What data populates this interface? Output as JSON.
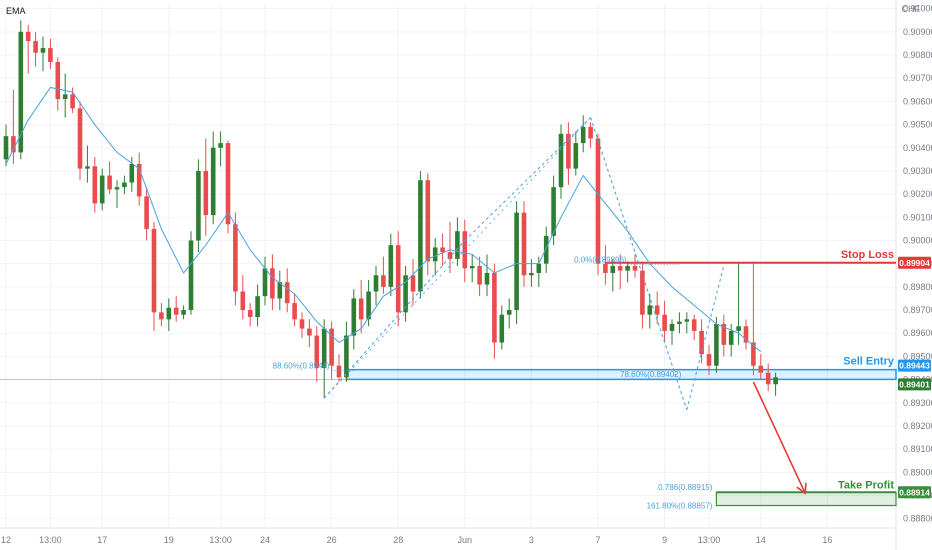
{
  "indicator_label": "EMA",
  "currency_label": "CHF",
  "colors": {
    "up": "#2e7d32",
    "down": "#e84c4c",
    "ema": "#4aa3df",
    "stop_loss": "#e53935",
    "sell_entry": "#2196f3",
    "take_profit": "#388e3c",
    "pattern": "#4aa3df",
    "grid": "#f0f3fa",
    "axis_text": "#787b86"
  },
  "chart_data": {
    "type": "candlestick",
    "instrument_currency": "CHF",
    "y_ticks": [
      "0.91000",
      "0.90900",
      "0.90800",
      "0.90700",
      "0.90600",
      "0.90500",
      "0.90400",
      "0.90300",
      "0.90200",
      "0.90100",
      "0.90000",
      "0.89900",
      "0.89800",
      "0.89700",
      "0.89600",
      "0.89500",
      "0.89400",
      "0.89300",
      "0.89200",
      "0.89100",
      "0.89000",
      "0.88900",
      "0.88800"
    ],
    "ylim": [
      0.8876,
      0.9102
    ],
    "x_ticks": [
      {
        "label": "12",
        "index": 0
      },
      {
        "label": "13:00",
        "index": 6
      },
      {
        "label": "17",
        "index": 13
      },
      {
        "label": "19",
        "index": 22
      },
      {
        "label": "13:00",
        "index": 29
      },
      {
        "label": "24",
        "index": 35
      },
      {
        "label": "26",
        "index": 44
      },
      {
        "label": "28",
        "index": 53
      },
      {
        "label": "Jun",
        "index": 62
      },
      {
        "label": "3",
        "index": 71
      },
      {
        "label": "7",
        "index": 80
      },
      {
        "label": "9",
        "index": 89
      },
      {
        "label": "13:00",
        "index": 95
      },
      {
        "label": "14",
        "index": 102
      },
      {
        "label": "16",
        "index": 111
      }
    ],
    "candles": [
      [
        0.9035,
        0.905,
        0.9032,
        0.9045
      ],
      [
        0.9045,
        0.9065,
        0.9033,
        0.9038
      ],
      [
        0.9038,
        0.9095,
        0.9035,
        0.909
      ],
      [
        0.909,
        0.9093,
        0.9072,
        0.9086
      ],
      [
        0.9086,
        0.909,
        0.9075,
        0.9081
      ],
      [
        0.9081,
        0.9088,
        0.9073,
        0.9083
      ],
      [
        0.9083,
        0.9087,
        0.9074,
        0.9077
      ],
      [
        0.9077,
        0.9079,
        0.9056,
        0.9061
      ],
      [
        0.9061,
        0.9072,
        0.9053,
        0.9063
      ],
      [
        0.9063,
        0.9066,
        0.9055,
        0.9057
      ],
      [
        0.9057,
        0.906,
        0.9026,
        0.9031
      ],
      [
        0.9031,
        0.9041,
        0.9025,
        0.9032
      ],
      [
        0.9032,
        0.9036,
        0.9012,
        0.9016
      ],
      [
        0.9016,
        0.9031,
        0.9013,
        0.9028
      ],
      [
        0.9028,
        0.9034,
        0.902,
        0.9022
      ],
      [
        0.9022,
        0.9026,
        0.9014,
        0.9023
      ],
      [
        0.9023,
        0.9028,
        0.902,
        0.9025
      ],
      [
        0.9025,
        0.9036,
        0.9021,
        0.9033
      ],
      [
        0.9033,
        0.9038,
        0.9015,
        0.9019
      ],
      [
        0.9019,
        0.9023,
        0.9,
        0.9005
      ],
      [
        0.9005,
        0.9008,
        0.8961,
        0.8969
      ],
      [
        0.8969,
        0.8973,
        0.8963,
        0.8966
      ],
      [
        0.8966,
        0.8975,
        0.8961,
        0.8971
      ],
      [
        0.8971,
        0.8976,
        0.8965,
        0.8968
      ],
      [
        0.8968,
        0.8972,
        0.8966,
        0.897
      ],
      [
        0.897,
        0.9004,
        0.8968,
        0.9
      ],
      [
        0.9,
        0.9035,
        0.8995,
        0.903
      ],
      [
        0.903,
        0.9044,
        0.9002,
        0.9011
      ],
      [
        0.9011,
        0.9047,
        0.9007,
        0.904
      ],
      [
        0.904,
        0.9047,
        0.9032,
        0.9042
      ],
      [
        0.9042,
        0.9043,
        0.9003,
        0.9007
      ],
      [
        0.9007,
        0.9012,
        0.8972,
        0.8978
      ],
      [
        0.8978,
        0.8985,
        0.8966,
        0.897
      ],
      [
        0.897,
        0.8973,
        0.8963,
        0.8967
      ],
      [
        0.8967,
        0.8981,
        0.8963,
        0.8976
      ],
      [
        0.8976,
        0.8993,
        0.8972,
        0.8988
      ],
      [
        0.8988,
        0.8994,
        0.897,
        0.8975
      ],
      [
        0.8975,
        0.8987,
        0.897,
        0.8982
      ],
      [
        0.8982,
        0.8988,
        0.8969,
        0.8973
      ],
      [
        0.8973,
        0.8977,
        0.8963,
        0.8966
      ],
      [
        0.8966,
        0.8969,
        0.8958,
        0.8962
      ],
      [
        0.8962,
        0.8966,
        0.8954,
        0.8959
      ],
      [
        0.8959,
        0.8963,
        0.8939,
        0.8945
      ],
      [
        0.8945,
        0.8966,
        0.8932,
        0.8962
      ],
      [
        0.8962,
        0.8965,
        0.894,
        0.8946
      ],
      [
        0.8946,
        0.8951,
        0.8939,
        0.8941
      ],
      [
        0.8941,
        0.8965,
        0.8939,
        0.8959
      ],
      [
        0.8959,
        0.8979,
        0.8953,
        0.8975
      ],
      [
        0.8975,
        0.8983,
        0.896,
        0.8966
      ],
      [
        0.8966,
        0.8983,
        0.8963,
        0.8978
      ],
      [
        0.8978,
        0.8989,
        0.8972,
        0.8985
      ],
      [
        0.8985,
        0.8993,
        0.8977,
        0.898
      ],
      [
        0.898,
        0.9003,
        0.8976,
        0.8998
      ],
      [
        0.8998,
        0.9004,
        0.8963,
        0.8969
      ],
      [
        0.8969,
        0.8989,
        0.8965,
        0.8985
      ],
      [
        0.8985,
        0.8992,
        0.8972,
        0.8978
      ],
      [
        0.8978,
        0.903,
        0.8975,
        0.9026
      ],
      [
        0.9026,
        0.9029,
        0.8985,
        0.8991
      ],
      [
        0.8991,
        0.9001,
        0.8985,
        0.8997
      ],
      [
        0.8997,
        0.9003,
        0.8989,
        0.8995
      ],
      [
        0.8995,
        0.9008,
        0.8986,
        0.8992
      ],
      [
        0.8992,
        0.901,
        0.8989,
        0.9004
      ],
      [
        0.9004,
        0.9009,
        0.8982,
        0.8988
      ],
      [
        0.8988,
        0.8994,
        0.8982,
        0.8989
      ],
      [
        0.8989,
        0.8993,
        0.8976,
        0.8981
      ],
      [
        0.8981,
        0.8994,
        0.8976,
        0.8986
      ],
      [
        0.8986,
        0.899,
        0.8949,
        0.8956
      ],
      [
        0.8956,
        0.8972,
        0.8953,
        0.8968
      ],
      [
        0.8968,
        0.8975,
        0.8962,
        0.897
      ],
      [
        0.897,
        0.9017,
        0.8964,
        0.9012
      ],
      [
        0.9012,
        0.9017,
        0.898,
        0.8985
      ],
      [
        0.8985,
        0.8992,
        0.898,
        0.8986
      ],
      [
        0.8986,
        0.8993,
        0.898,
        0.899
      ],
      [
        0.899,
        0.9006,
        0.8986,
        0.9002
      ],
      [
        0.9002,
        0.9028,
        0.8998,
        0.9023
      ],
      [
        0.9023,
        0.905,
        0.9018,
        0.9046
      ],
      [
        0.9046,
        0.9051,
        0.9024,
        0.9031
      ],
      [
        0.9031,
        0.9047,
        0.9028,
        0.9042
      ],
      [
        0.9042,
        0.9054,
        0.9038,
        0.9049
      ],
      [
        0.9049,
        0.9051,
        0.904,
        0.9044
      ],
      [
        0.9044,
        0.9046,
        0.8985,
        0.899
      ],
      [
        0.899,
        0.8998,
        0.8981,
        0.8986
      ],
      [
        0.8986,
        0.8992,
        0.8978,
        0.8989
      ],
      [
        0.8989,
        0.8994,
        0.8979,
        0.8987
      ],
      [
        0.8987,
        0.8991,
        0.8982,
        0.8989
      ],
      [
        0.8989,
        0.8994,
        0.8984,
        0.8987
      ],
      [
        0.8987,
        0.8991,
        0.8962,
        0.8968
      ],
      [
        0.8968,
        0.8977,
        0.8962,
        0.8972
      ],
      [
        0.8972,
        0.8978,
        0.8964,
        0.8968
      ],
      [
        0.8968,
        0.8974,
        0.8956,
        0.8961
      ],
      [
        0.8961,
        0.8966,
        0.8955,
        0.8964
      ],
      [
        0.8964,
        0.8969,
        0.896,
        0.8965
      ],
      [
        0.8965,
        0.8969,
        0.896,
        0.8966
      ],
      [
        0.8966,
        0.8968,
        0.8957,
        0.8961
      ],
      [
        0.8961,
        0.8966,
        0.8947,
        0.8951
      ],
      [
        0.8951,
        0.8955,
        0.8942,
        0.8946
      ],
      [
        0.8946,
        0.8967,
        0.8943,
        0.8964
      ],
      [
        0.8964,
        0.8968,
        0.895,
        0.8955
      ],
      [
        0.8955,
        0.8964,
        0.895,
        0.8961
      ],
      [
        0.8961,
        0.899,
        0.8955,
        0.8963
      ],
      [
        0.8963,
        0.8966,
        0.8953,
        0.8956
      ],
      [
        0.8956,
        0.899,
        0.8942,
        0.8946
      ],
      [
        0.8946,
        0.8951,
        0.894,
        0.8943
      ],
      [
        0.8943,
        0.8947,
        0.8935,
        0.8938
      ],
      [
        0.8938,
        0.8943,
        0.8933,
        0.8941
      ]
    ],
    "ema": [
      [
        0,
        0.9033
      ],
      [
        3,
        0.9052
      ],
      [
        6,
        0.9066
      ],
      [
        9,
        0.9064
      ],
      [
        12,
        0.905
      ],
      [
        15,
        0.9038
      ],
      [
        18,
        0.9031
      ],
      [
        21,
        0.9005
      ],
      [
        24,
        0.8986
      ],
      [
        27,
        0.8998
      ],
      [
        30,
        0.9012
      ],
      [
        33,
        0.8996
      ],
      [
        36,
        0.8984
      ],
      [
        39,
        0.8977
      ],
      [
        42,
        0.8965
      ],
      [
        45,
        0.8956
      ],
      [
        48,
        0.8962
      ],
      [
        51,
        0.8976
      ],
      [
        54,
        0.8982
      ],
      [
        57,
        0.8992
      ],
      [
        60,
        0.8996
      ],
      [
        63,
        0.8994
      ],
      [
        66,
        0.8986
      ],
      [
        69,
        0.899
      ],
      [
        72,
        0.899
      ],
      [
        75,
        0.901
      ],
      [
        78,
        0.9028
      ],
      [
        81,
        0.9016
      ],
      [
        84,
        0.9004
      ],
      [
        87,
        0.899
      ],
      [
        90,
        0.898
      ],
      [
        93,
        0.8972
      ],
      [
        96,
        0.8964
      ],
      [
        99,
        0.896
      ],
      [
        102,
        0.8952
      ]
    ],
    "pattern_points": [
      [
        43,
        0.8932
      ],
      [
        62,
        0.9
      ],
      [
        79,
        0.9053
      ],
      [
        92,
        0.8927
      ],
      [
        97,
        0.8989
      ]
    ],
    "levels": {
      "stop_loss": {
        "price": 0.89904,
        "label": "Stop Loss",
        "tag": "0.89904"
      },
      "sell_entry": {
        "price_top": 0.89443,
        "price_bottom": 0.89401,
        "label": "Sell Entry",
        "tag_top": "0.89443",
        "tag_bottom": "0.89401"
      },
      "take_profit": {
        "price_top": 0.88914,
        "price_bottom": 0.88857,
        "label": "Take Profit",
        "tag": "0.88914"
      }
    },
    "fib_labels": {
      "fib_886": "88.60%(0.8944)",
      "fib_786_entry": "78.60%(0.89402)",
      "fib_zero": "0.0%(0.89896)",
      "fib_786_tp": "0.786(0.88915)",
      "fib_1618": "161.80%(0.88857)"
    },
    "projection": {
      "from": [
        101,
        0.8939
      ],
      "to": [
        108,
        0.8891
      ]
    }
  }
}
